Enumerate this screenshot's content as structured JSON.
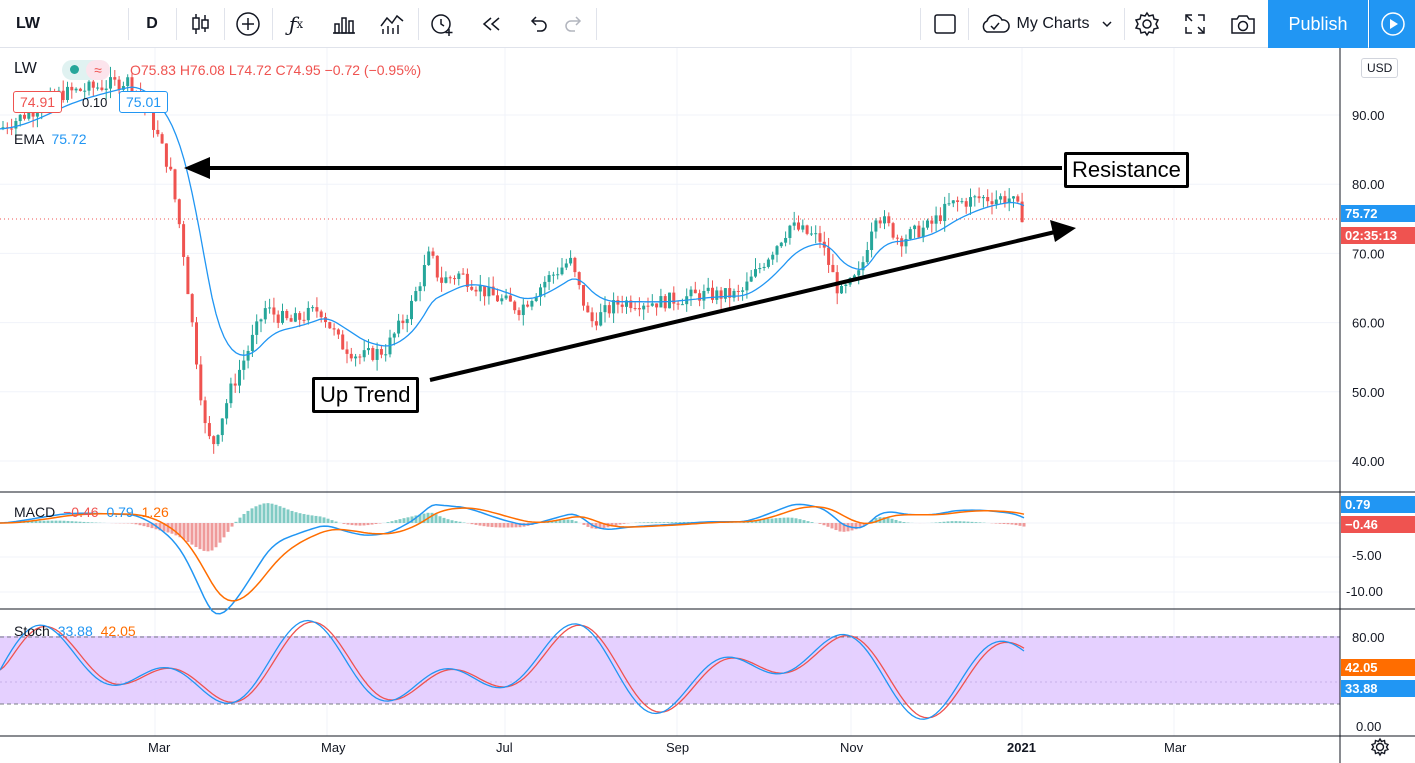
{
  "toolbar": {
    "symbol": "LW",
    "interval": "D",
    "my_charts_label": "My Charts",
    "publish_label": "Publish",
    "icons": [
      "candles-icon",
      "add-compare-icon",
      "indicators-icon",
      "templates-icon",
      "compare-icon",
      "alert-icon",
      "replay-icon",
      "undo-icon",
      "redo-icon",
      "layout-icon",
      "cloud-icon",
      "settings-icon",
      "fullscreen-icon",
      "camera-icon",
      "play-icon"
    ]
  },
  "legend": {
    "symbol": "LW",
    "ohlc": "O75.83 H76.08 L74.72 C74.95 −0.72 (−0.95%)",
    "sell_price": "74.91",
    "spread": "0.10",
    "buy_price": "75.01",
    "ema_label": "EMA",
    "ema_value": "75.72"
  },
  "currency": "USD",
  "price_axis": {
    "ticks": [
      "90.00",
      "80.00",
      "70.00",
      "60.00",
      "50.00",
      "40.00"
    ],
    "tick_values": [
      90,
      80,
      70,
      60,
      50,
      40
    ],
    "ema_label": "75.72",
    "countdown": "02:35:13"
  },
  "annotations": {
    "resistance": "Resistance",
    "uptrend": "Up Trend"
  },
  "macd": {
    "label": "MACD",
    "v1": "−0.46",
    "v2": "0.79",
    "v3": "1.26",
    "axis_ticks": [
      "-5.00",
      "-10.00"
    ],
    "label_blue": "0.79",
    "label_red": "−0.46"
  },
  "stoch": {
    "label": "Stoch",
    "k": "33.88",
    "d": "42.05",
    "axis_ticks": [
      "80.00",
      "0.00"
    ],
    "label_orange": "42.05",
    "label_blue": "33.88"
  },
  "time_axis": [
    "Mar",
    "May",
    "Jul",
    "Sep",
    "Nov",
    "2021",
    "Mar"
  ],
  "colors": {
    "up": "#26a69a",
    "down": "#ef5350",
    "ema": "#2196f3",
    "macd_signal": "#ff6d00",
    "stoch_band": "#e1c8ff",
    "accent": "#2196f3"
  }
}
